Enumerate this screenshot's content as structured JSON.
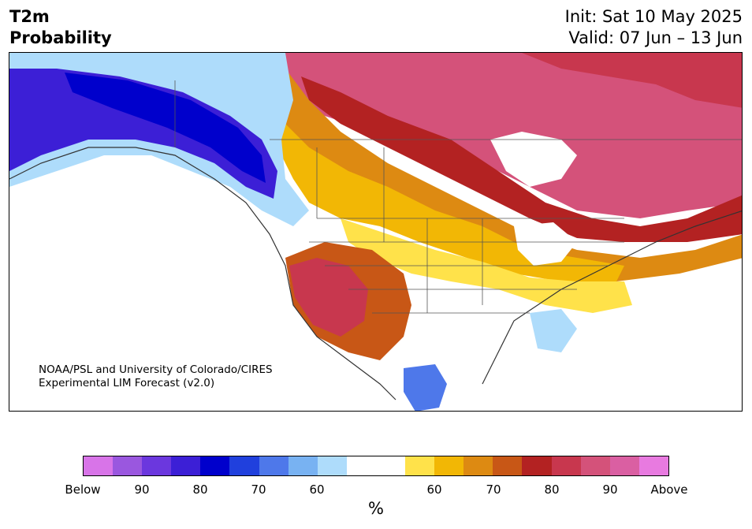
{
  "header": {
    "title_line1": "T2m",
    "title_line2": "Probability",
    "init": "Init: Sat 10 May 2025",
    "valid": "Valid: 07 Jun – 13 Jun"
  },
  "credit": {
    "line1": "NOAA/PSL and University of Colorado/CIRES",
    "line2": "Experimental LIM Forecast (v2.0)"
  },
  "colorbar": {
    "colors": [
      "#d874e8",
      "#9a57df",
      "#6b37de",
      "#3c1fd6",
      "#0000cc",
      "#2040dd",
      "#4e78ea",
      "#78b2f2",
      "#aedcfb",
      "#ffffff",
      "#ffffff",
      "#ffe24a",
      "#f2b705",
      "#dd8a12",
      "#c85716",
      "#b32222",
      "#c8374e",
      "#d4527a",
      "#da5fa2",
      "#e87ae0"
    ],
    "tick_labels": [
      "Below",
      "90",
      "80",
      "70",
      "60",
      "60",
      "70",
      "80",
      "90",
      "Above"
    ],
    "unit": "%"
  },
  "map": {
    "regions": [
      {
        "name": "alaska-below-warm",
        "color": "#aedcfb"
      },
      {
        "name": "alaska-below",
        "color": "#3c1fd6"
      },
      {
        "name": "alaska-below-strong",
        "color": "#0000cc"
      },
      {
        "name": "canada-above",
        "color": "#d4527a"
      },
      {
        "name": "hudson-above-strong",
        "color": "#b32222"
      },
      {
        "name": "prairie-above",
        "color": "#f2b705"
      },
      {
        "name": "southwest-above",
        "color": "#c8374e"
      },
      {
        "name": "midwest-above",
        "color": "#ffe24a"
      },
      {
        "name": "southeast-below",
        "color": "#aedcfb"
      },
      {
        "name": "mexico-below",
        "color": "#4e78ea"
      }
    ]
  }
}
